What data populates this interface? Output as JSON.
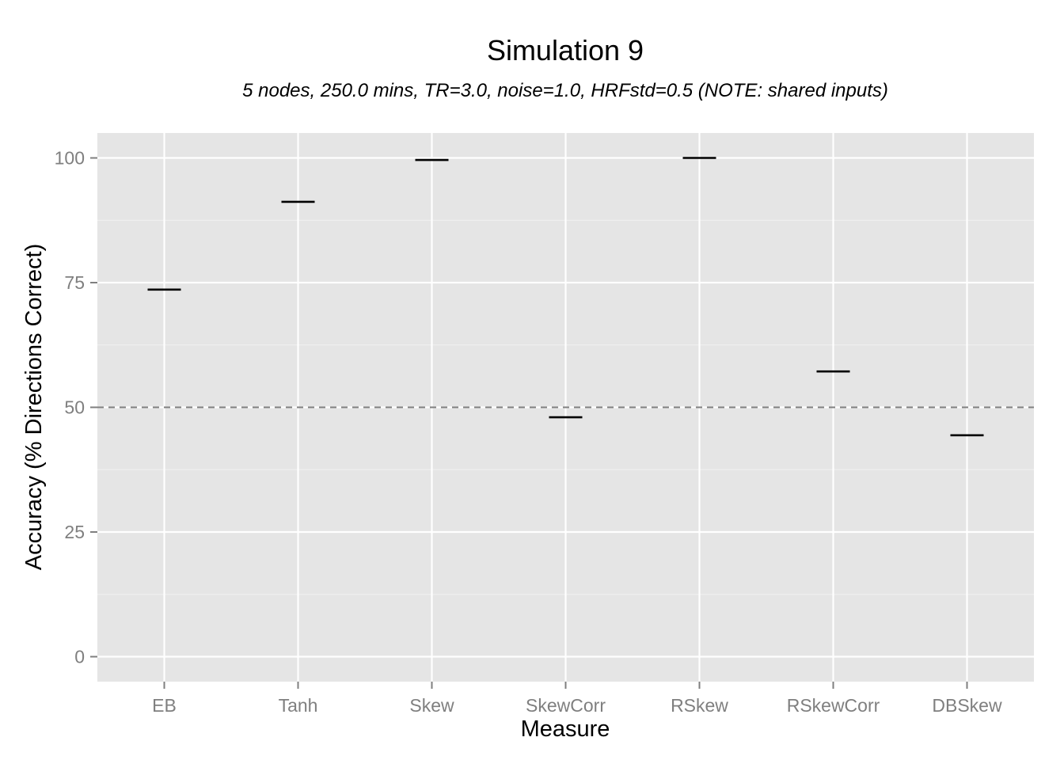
{
  "chart_data": {
    "type": "point-range",
    "title": "Simulation 9",
    "subtitle": "5 nodes, 250.0 mins, TR=3.0, noise=1.0, HRFstd=0.5 (NOTE: shared inputs)",
    "xlabel": "Measure",
    "ylabel": "Accuracy (% Directions Correct)",
    "categories": [
      "EB",
      "Tanh",
      "Skew",
      "SkewCorr",
      "RSkew",
      "RSkewCorr",
      "DBSkew"
    ],
    "values": [
      73.6,
      91.2,
      99.6,
      48.0,
      100.0,
      57.2,
      44.4
    ],
    "ylim": [
      -5,
      105
    ],
    "yticks": [
      0,
      25,
      50,
      75,
      100
    ],
    "reference_line": {
      "y": 50,
      "style": "dashed"
    },
    "grid": true,
    "legend": "none",
    "colors": {
      "panel": "#e5e5e5",
      "grid_major": "#ffffff",
      "grid_minor": "#f2f2f2",
      "marker": "#000000",
      "reference": "#7f7f7f",
      "tick_text": "#7f7f7f"
    }
  }
}
